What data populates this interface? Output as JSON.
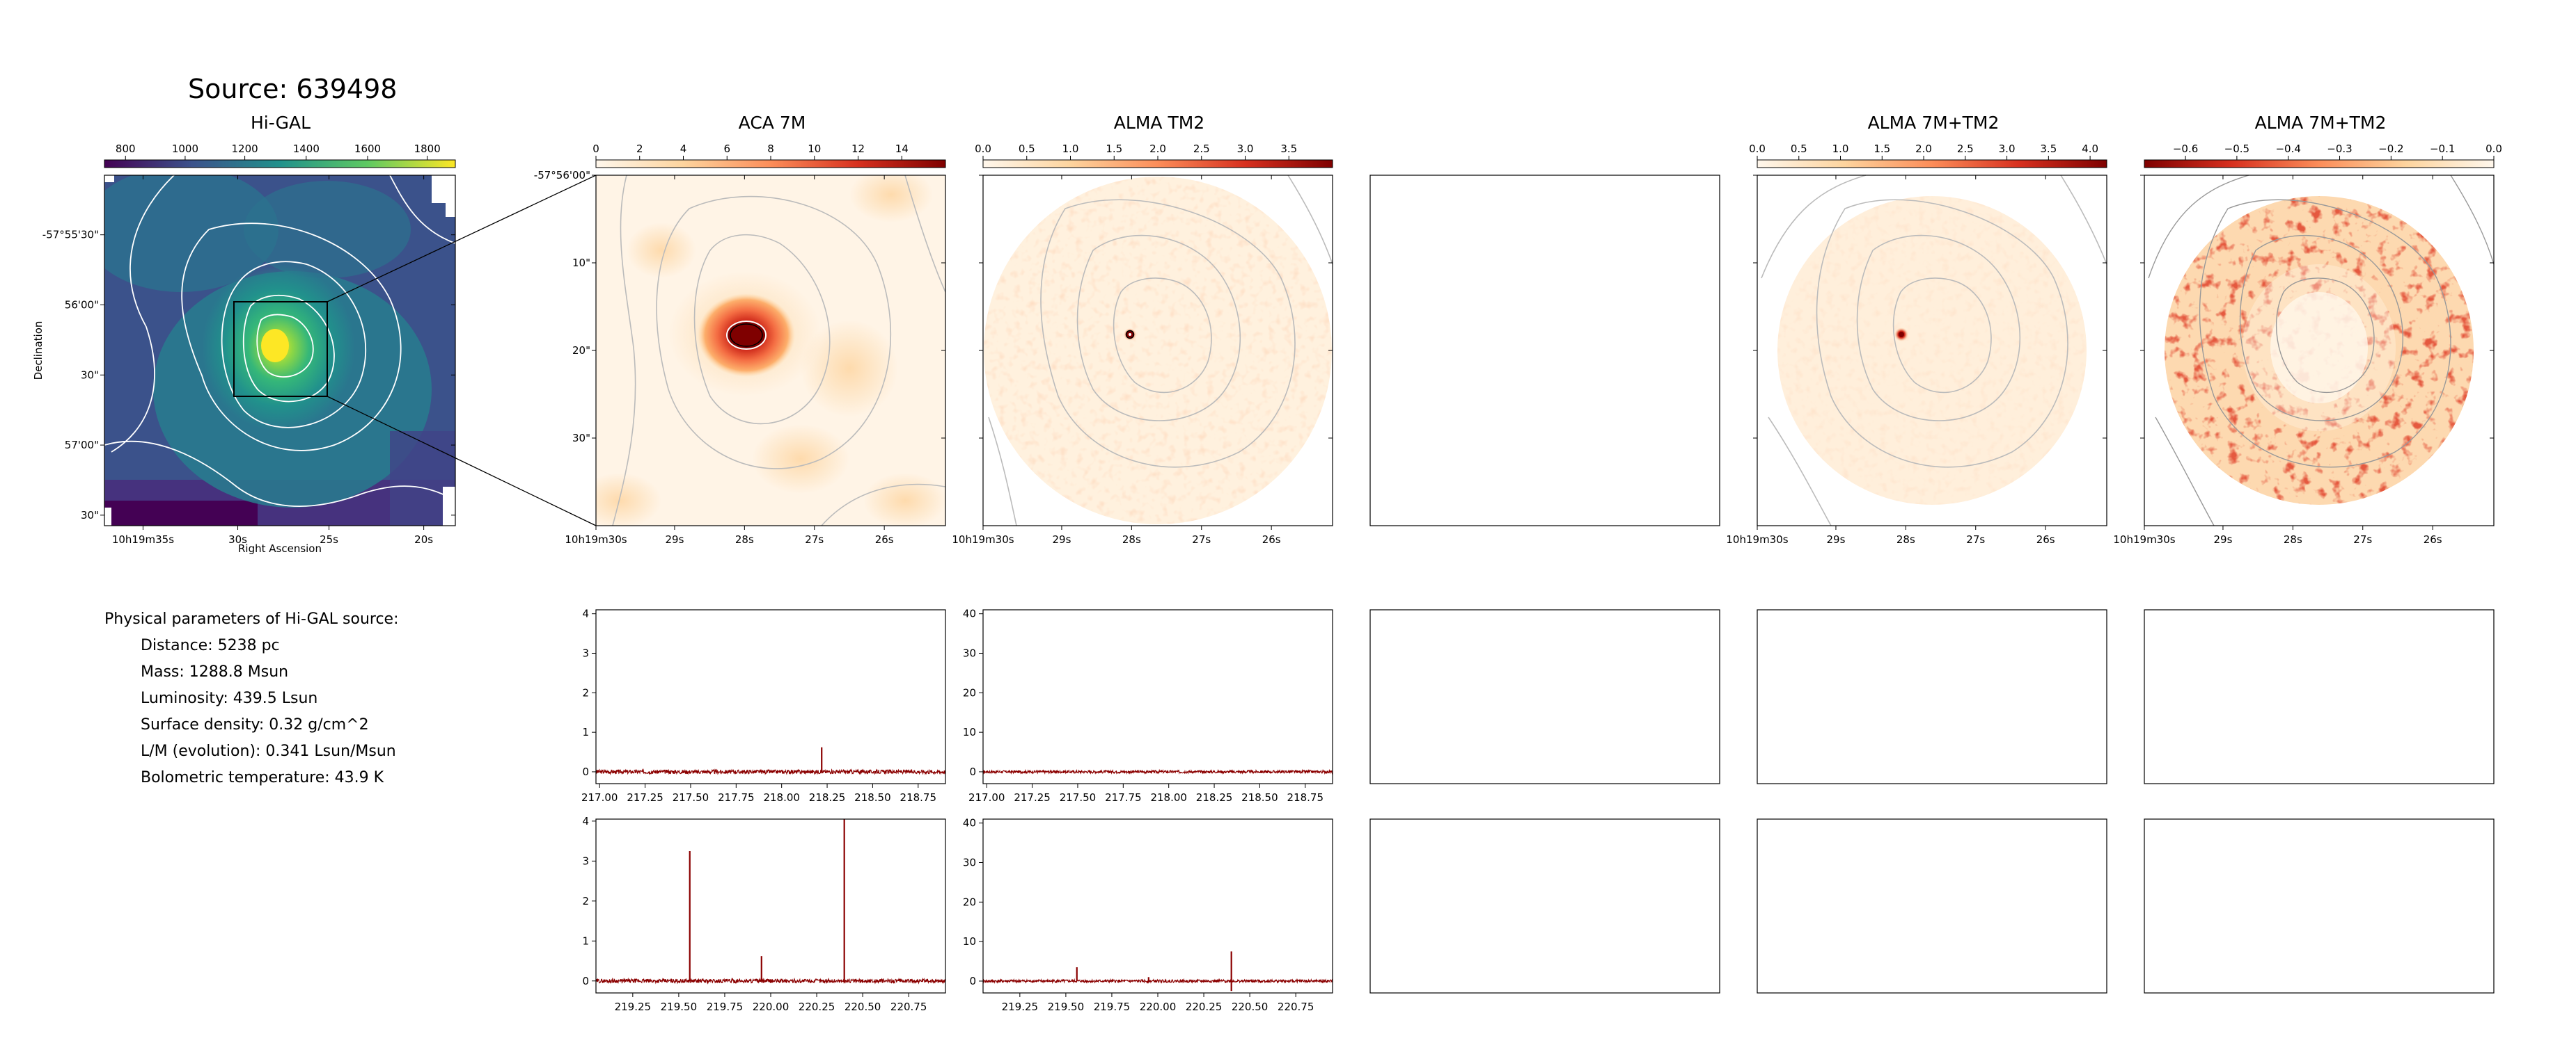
{
  "figure": {
    "source_title": "Source: 639498",
    "panel_titles": [
      "Hi-GAL",
      "ACA 7M",
      "ALMA TM2",
      "ALMA 7M+TM2",
      "ALMA 7M+TM2"
    ]
  },
  "physical_parameters": {
    "heading": "Physical parameters of Hi-GAL source:",
    "lines": [
      "Distance: 5238 pc",
      "Mass: 1288.8 Msun",
      "Luminosity: 439.5 Lsun",
      "Surface density: 0.32 g/cm^2",
      "L/M (evolution): 0.341 Lsun/Msun",
      "Bolometric temperature: 43.9 K"
    ]
  },
  "colors": {
    "viridis": [
      "#440154",
      "#3b528b",
      "#21918c",
      "#5ec962",
      "#fde725"
    ],
    "orrd": [
      "#fff7ec",
      "#fdd49e",
      "#fc8d59",
      "#d7301f",
      "#7f0000"
    ],
    "orrd_rev": [
      "#7f0000",
      "#d7301f",
      "#fc8d59",
      "#fdd49e",
      "#fff7ec"
    ],
    "spectrum_line": "#8b0000",
    "contour_light": "#bbbbbb",
    "contour_white": "#ffffff"
  },
  "chart_data": [
    {
      "type": "heatmap",
      "title": "Hi-GAL",
      "colorbar": {
        "ticks": [
          "800",
          "1000",
          "1200",
          "1400",
          "1600",
          "1800"
        ],
        "range": [
          700,
          1850
        ]
      },
      "xlabel": "Right Ascension",
      "ylabel": "Declination",
      "x_ticks": [
        "10h19m35s",
        "30s",
        "25s",
        "20s"
      ],
      "y_ticks": [
        "-57°55'30\"",
        "56'00\"",
        "30\"",
        "57'00\"",
        "30\""
      ]
    },
    {
      "type": "heatmap",
      "title": "ACA 7M",
      "colorbar": {
        "ticks": [
          "0",
          "2",
          "4",
          "6",
          "8",
          "10",
          "12",
          "14"
        ],
        "range": [
          0,
          16
        ]
      },
      "x_ticks": [
        "10h19m30s",
        "29s",
        "28s",
        "27s",
        "26s"
      ],
      "y_ticks": [
        "-57°56'00\"",
        "10\"",
        "20\"",
        "30\""
      ]
    },
    {
      "type": "heatmap",
      "title": "ALMA TM2",
      "colorbar": {
        "ticks": [
          "0.0",
          "0.5",
          "1.0",
          "1.5",
          "2.0",
          "2.5",
          "3.0",
          "3.5"
        ],
        "range": [
          0,
          4
        ]
      },
      "x_ticks": [
        "10h19m30s",
        "29s",
        "28s",
        "27s",
        "26s"
      ]
    },
    {
      "type": "heatmap",
      "title": "ALMA 7M+TM2",
      "colorbar": {
        "ticks": [
          "0.0",
          "0.5",
          "1.0",
          "1.5",
          "2.0",
          "2.5",
          "3.0",
          "3.5",
          "4.0"
        ],
        "range": [
          0,
          4.2
        ]
      },
      "x_ticks": [
        "10h19m30s",
        "29s",
        "28s",
        "27s",
        "26s"
      ]
    },
    {
      "type": "heatmap",
      "title": "ALMA 7M+TM2",
      "colorbar": {
        "ticks": [
          "−0.6",
          "−0.5",
          "−0.4",
          "−0.3",
          "−0.2",
          "−0.1",
          "0.0"
        ],
        "range": [
          -0.68,
          0
        ]
      },
      "x_ticks": [
        "10h19m30s",
        "29s",
        "28s",
        "27s",
        "26s"
      ]
    },
    {
      "type": "line",
      "name": "ACA 7M spectrum (low band)",
      "xlim": [
        216.98,
        218.9
      ],
      "ylim": [
        -0.3,
        4.1
      ],
      "x_ticks": [
        "217.00",
        "217.25",
        "217.50",
        "217.75",
        "218.00",
        "218.25",
        "218.50",
        "218.75"
      ],
      "y_ticks": [
        "0",
        "1",
        "2",
        "3",
        "4"
      ],
      "noise": 0.05,
      "peaks": [
        {
          "x": 218.22,
          "y": 0.62
        }
      ]
    },
    {
      "type": "line",
      "name": "ALMA TM2 spectrum (low band)",
      "xlim": [
        216.98,
        218.9
      ],
      "ylim": [
        -3,
        41
      ],
      "x_ticks": [
        "217.00",
        "217.25",
        "217.50",
        "217.75",
        "218.00",
        "218.25",
        "218.50",
        "218.75"
      ],
      "y_ticks": [
        "0",
        "10",
        "20",
        "30",
        "40"
      ],
      "noise": 0.35,
      "peaks": []
    },
    {
      "type": "line",
      "name": "ACA 7M spectrum (high band)",
      "xlim": [
        219.05,
        220.95
      ],
      "ylim": [
        -0.3,
        4.05
      ],
      "x_ticks": [
        "219.25",
        "219.50",
        "219.75",
        "220.00",
        "220.25",
        "220.50",
        "220.75"
      ],
      "y_ticks": [
        "0",
        "1",
        "2",
        "3",
        "4"
      ],
      "noise": 0.05,
      "peaks": [
        {
          "x": 219.56,
          "y": 3.25
        },
        {
          "x": 219.95,
          "y": 0.62
        },
        {
          "x": 220.4,
          "y": 4.05
        }
      ]
    },
    {
      "type": "line",
      "name": "ALMA TM2 spectrum (high band)",
      "xlim": [
        219.05,
        220.95
      ],
      "ylim": [
        -3,
        41
      ],
      "x_ticks": [
        "219.25",
        "219.50",
        "219.75",
        "220.00",
        "220.25",
        "220.50",
        "220.75"
      ],
      "y_ticks": [
        "0",
        "10",
        "20",
        "30",
        "40"
      ],
      "noise": 0.35,
      "peaks": [
        {
          "x": 219.56,
          "y": 3.5
        },
        {
          "x": 219.95,
          "y": 1.0
        },
        {
          "x": 220.4,
          "y": 7.5
        },
        {
          "x": 220.4,
          "y": -2.5
        }
      ]
    }
  ]
}
